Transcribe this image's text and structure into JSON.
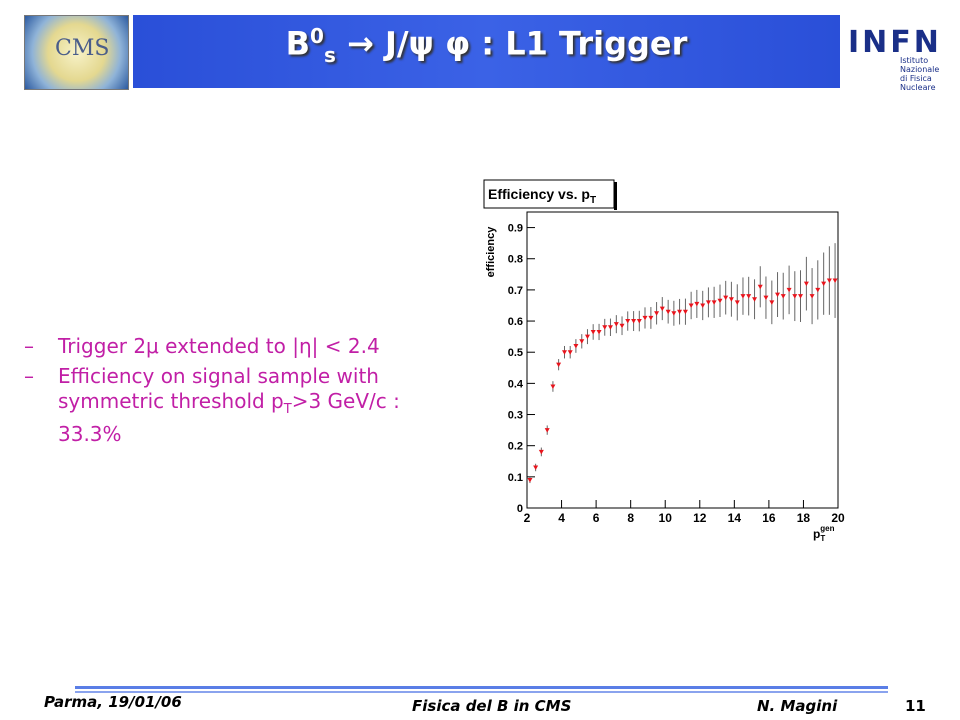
{
  "header": {
    "title_base": "B",
    "title_sup": "0",
    "title_sub": "s",
    "title_rest": " → J/ψ φ : L1 Trigger",
    "logo_left": "CMS",
    "logo_right": "INFN",
    "logo_right_sub": [
      "Istituto Nazionale",
      "di Fisica Nucleare"
    ]
  },
  "bullets": [
    {
      "marker": "–",
      "parts": [
        "Trigger 2μ extended to |η| < 2.4"
      ]
    },
    {
      "marker": "–",
      "parts": [
        "Efficiency on signal sample with symmetric threshold p",
        "T",
        ">3 GeV/c : 33.3%"
      ]
    }
  ],
  "chart_data": {
    "type": "scatter",
    "title": "Efficiency vs. p",
    "title_sub": "T",
    "y_label": "efficiency",
    "x_label": "p",
    "x_label_sub": "T",
    "x_label_sup": "gen",
    "color": "#e8141c",
    "error_color": "#666666",
    "xlim": [
      2,
      20
    ],
    "ylim": [
      0,
      0.95
    ],
    "xticks": [
      2,
      4,
      6,
      8,
      10,
      12,
      14,
      16,
      18,
      20
    ],
    "yticks": [
      0,
      0.1,
      0.2,
      0.3,
      0.4,
      0.5,
      0.6,
      0.7,
      0.8,
      0.9
    ],
    "x": [
      2.17,
      2.5,
      2.83,
      3.17,
      3.5,
      3.83,
      4.17,
      4.5,
      4.83,
      5.17,
      5.5,
      5.83,
      6.17,
      6.5,
      6.83,
      7.17,
      7.5,
      7.83,
      8.17,
      8.5,
      8.83,
      9.17,
      9.5,
      9.83,
      10.17,
      10.5,
      10.83,
      11.17,
      11.5,
      11.83,
      12.17,
      12.5,
      12.83,
      13.17,
      13.5,
      13.83,
      14.17,
      14.5,
      14.83,
      15.17,
      15.5,
      15.83,
      16.17,
      16.5,
      16.83,
      17.17,
      17.5,
      17.83,
      18.17,
      18.5,
      18.83,
      19.17,
      19.5,
      19.83
    ],
    "values": [
      0.09,
      0.13,
      0.18,
      0.25,
      0.39,
      0.46,
      0.5,
      0.5,
      0.52,
      0.535,
      0.55,
      0.565,
      0.565,
      0.58,
      0.58,
      0.59,
      0.585,
      0.6,
      0.6,
      0.6,
      0.61,
      0.61,
      0.625,
      0.64,
      0.63,
      0.625,
      0.63,
      0.63,
      0.65,
      0.655,
      0.65,
      0.66,
      0.66,
      0.665,
      0.675,
      0.67,
      0.66,
      0.68,
      0.68,
      0.67,
      0.71,
      0.675,
      0.66,
      0.685,
      0.68,
      0.7,
      0.68,
      0.68,
      0.72,
      0.68,
      0.7,
      0.72,
      0.73,
      0.73
    ],
    "errors": [
      0.01,
      0.012,
      0.014,
      0.015,
      0.017,
      0.018,
      0.02,
      0.02,
      0.022,
      0.023,
      0.024,
      0.025,
      0.026,
      0.027,
      0.028,
      0.029,
      0.03,
      0.031,
      0.032,
      0.033,
      0.034,
      0.035,
      0.036,
      0.037,
      0.038,
      0.04,
      0.041,
      0.042,
      0.044,
      0.045,
      0.047,
      0.048,
      0.05,
      0.052,
      0.054,
      0.056,
      0.058,
      0.06,
      0.062,
      0.064,
      0.066,
      0.068,
      0.07,
      0.072,
      0.075,
      0.078,
      0.08,
      0.083,
      0.086,
      0.09,
      0.095,
      0.1,
      0.11,
      0.12
    ]
  },
  "footer": {
    "left": "Parma, 19/01/06",
    "center": "Fisica del B in CMS",
    "author": "N. Magini",
    "page": "11"
  }
}
